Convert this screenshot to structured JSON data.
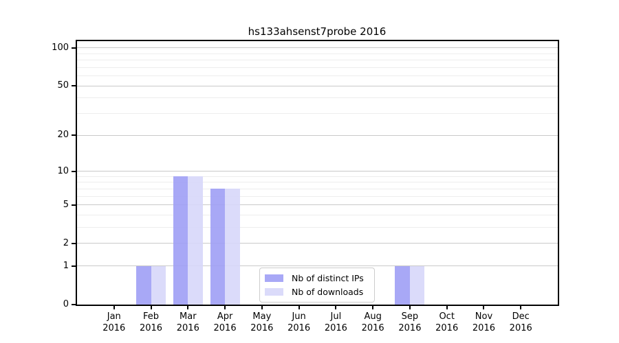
{
  "chart_data": {
    "type": "bar",
    "title": "hs133ahsenst7probe 2016",
    "x_axis": {
      "months": [
        "Jan",
        "Feb",
        "Mar",
        "Apr",
        "May",
        "Jun",
        "Jul",
        "Aug",
        "Sep",
        "Oct",
        "Nov",
        "Dec"
      ],
      "year": "2016"
    },
    "series": [
      {
        "name": "Nb of distinct IPs",
        "color": "#9f9ff5",
        "alpha": 0.9,
        "values": [
          0,
          1,
          9,
          7,
          0,
          0,
          0,
          0,
          1,
          0,
          0,
          0
        ]
      },
      {
        "name": "Nb of downloads",
        "color": "#d7d7fa",
        "alpha": 0.9,
        "values": [
          0,
          1,
          9,
          7,
          0,
          0,
          0,
          0,
          1,
          0,
          0,
          0
        ]
      }
    ],
    "y_axis": {
      "scale": "log1p",
      "lim": [
        0,
        113
      ],
      "ticks_major": [
        0,
        1,
        2,
        5,
        10,
        20,
        50,
        100
      ],
      "ticks_minor": [
        3,
        4,
        6,
        7,
        8,
        9,
        30,
        40,
        60,
        70,
        80,
        90
      ]
    },
    "grid": {
      "on": true,
      "major_color": "#c9c9c9",
      "minor_color": "#ededed"
    },
    "legend": {
      "location": "inside-bottom-center",
      "items": [
        "Nb of distinct IPs",
        "Nb of downloads"
      ]
    }
  }
}
